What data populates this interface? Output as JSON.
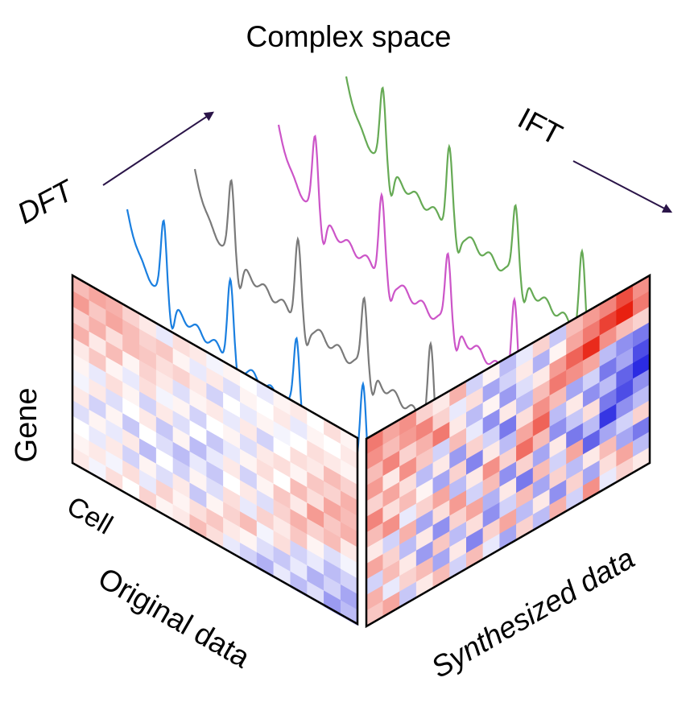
{
  "labels": {
    "title": "Complex space",
    "dft": "DFT",
    "ift": "IFT",
    "gene": "Gene",
    "cell": "Cell",
    "original": "Original data",
    "synthesized": "Synthesized data"
  },
  "colors": {
    "arrow": "#2a1448",
    "wave_series": [
      "#1a7fe0",
      "#7a7a7a",
      "#cc55c8",
      "#66aa55"
    ],
    "heat_negative": "#2020e0",
    "heat_positive": "#e82010",
    "heat_neutral": "#ffffff"
  },
  "heatmaps": {
    "original": {
      "rows": 12,
      "cols": 17,
      "values": [
        [
          0.3,
          0.4,
          0.35,
          0.2,
          0.1,
          -0.1,
          0.15,
          0.1,
          -0.05,
          0.05,
          0.0,
          -0.1,
          0.05,
          0.1,
          0.0,
          0.15,
          0.05
        ],
        [
          0.45,
          0.25,
          0.4,
          0.3,
          0.2,
          0.25,
          0.05,
          -0.1,
          0.1,
          -0.15,
          0.05,
          0.0,
          0.1,
          -0.1,
          0.05,
          0.0,
          0.1
        ],
        [
          0.2,
          0.35,
          0.15,
          0.3,
          0.25,
          0.15,
          0.2,
          0.1,
          -0.2,
          0.0,
          -0.1,
          0.05,
          -0.05,
          0.0,
          0.15,
          0.1,
          0.05
        ],
        [
          0.35,
          0.1,
          0.3,
          0.05,
          0.2,
          0.1,
          -0.15,
          0.05,
          0.1,
          -0.1,
          0.1,
          -0.2,
          0.0,
          0.15,
          0.1,
          0.3,
          0.2
        ],
        [
          0.1,
          0.25,
          0.05,
          -0.1,
          0.15,
          -0.05,
          0.05,
          -0.2,
          0.0,
          0.05,
          -0.15,
          0.1,
          0.15,
          0.05,
          0.25,
          0.2,
          0.35
        ],
        [
          0.05,
          -0.1,
          0.15,
          0.05,
          -0.2,
          0.1,
          -0.15,
          0.0,
          -0.25,
          -0.1,
          0.05,
          0.15,
          0.0,
          0.3,
          0.15,
          0.4,
          0.3
        ],
        [
          -0.05,
          0.1,
          -0.15,
          0.0,
          0.1,
          -0.25,
          0.05,
          -0.3,
          -0.1,
          0.1,
          -0.2,
          0.05,
          0.25,
          0.1,
          0.45,
          0.25,
          0.35
        ],
        [
          0.1,
          -0.2,
          0.05,
          -0.25,
          0.0,
          -0.15,
          -0.3,
          -0.1,
          -0.25,
          0.0,
          0.1,
          -0.15,
          0.2,
          0.35,
          0.2,
          0.3,
          0.1
        ],
        [
          -0.15,
          0.05,
          -0.1,
          0.1,
          -0.3,
          0.0,
          -0.2,
          0.05,
          -0.15,
          0.15,
          -0.1,
          0.2,
          0.1,
          0.25,
          0.05,
          -0.15,
          -0.05
        ],
        [
          0.0,
          -0.1,
          0.1,
          -0.2,
          0.05,
          -0.15,
          0.1,
          -0.25,
          0.05,
          0.2,
          0.3,
          -0.05,
          0.15,
          -0.2,
          -0.1,
          -0.3,
          -0.2
        ],
        [
          0.05,
          0.1,
          -0.05,
          0.15,
          -0.1,
          0.2,
          0.05,
          0.15,
          0.25,
          0.1,
          0.05,
          -0.15,
          -0.25,
          -0.1,
          -0.35,
          -0.2,
          -0.4
        ],
        [
          0.1,
          -0.05,
          0.15,
          0.0,
          0.2,
          0.05,
          0.1,
          0.3,
          0.15,
          -0.1,
          -0.2,
          -0.35,
          -0.1,
          -0.3,
          -0.15,
          -0.45,
          -0.3
        ]
      ]
    },
    "synthesized": {
      "rows": 12,
      "cols": 17,
      "values": [
        [
          0.6,
          0.4,
          0.5,
          0.2,
          0.1,
          0.35,
          -0.2,
          0.05,
          -0.3,
          -0.1,
          0.2,
          -0.25,
          0.3,
          0.45,
          0.55,
          0.8,
          0.5
        ],
        [
          0.5,
          0.3,
          0.45,
          0.55,
          0.2,
          -0.1,
          0.15,
          -0.4,
          -0.2,
          0.1,
          -0.35,
          0.05,
          0.4,
          0.6,
          0.85,
          1.0,
          0.6
        ],
        [
          0.3,
          0.55,
          0.2,
          0.35,
          0.6,
          0.1,
          -0.3,
          0.05,
          -0.45,
          -0.15,
          0.1,
          0.45,
          0.7,
          0.95,
          0.5,
          0.3,
          0.2
        ],
        [
          0.45,
          0.1,
          0.5,
          0.25,
          -0.2,
          0.3,
          -0.1,
          -0.5,
          0.1,
          -0.3,
          0.3,
          0.6,
          0.5,
          0.4,
          -0.3,
          -0.5,
          -0.6
        ],
        [
          0.2,
          0.4,
          0.15,
          -0.3,
          0.1,
          -0.45,
          0.2,
          -0.2,
          -0.6,
          0.15,
          0.5,
          0.3,
          -0.4,
          -0.2,
          -0.6,
          -0.4,
          -0.8
        ],
        [
          0.55,
          0.15,
          0.3,
          0.05,
          -0.4,
          0.2,
          -0.55,
          0.1,
          -0.3,
          0.4,
          0.7,
          -0.3,
          0.1,
          -0.5,
          -0.3,
          -0.7,
          -0.95
        ],
        [
          0.3,
          0.5,
          -0.1,
          0.2,
          0.4,
          -0.3,
          0.1,
          0.5,
          0.2,
          0.65,
          0.3,
          -0.5,
          -0.25,
          0.15,
          -0.6,
          -0.8,
          -0.5
        ],
        [
          0.1,
          -0.2,
          0.35,
          -0.4,
          0.15,
          0.45,
          -0.2,
          0.3,
          -0.5,
          0.2,
          -0.4,
          0.1,
          -0.6,
          -0.3,
          -0.9,
          -0.5,
          -0.3
        ],
        [
          0.4,
          0.2,
          -0.3,
          0.1,
          -0.5,
          0.2,
          0.4,
          -0.35,
          0.1,
          -0.6,
          0.3,
          -0.2,
          0.4,
          -0.7,
          -0.4,
          -0.2,
          0.2
        ],
        [
          -0.2,
          0.3,
          0.1,
          -0.45,
          0.25,
          -0.3,
          0.15,
          -0.5,
          -0.2,
          0.3,
          -0.4,
          0.2,
          -0.3,
          0.1,
          0.3,
          -0.4,
          -0.6
        ],
        [
          0.35,
          -0.1,
          0.2,
          0.3,
          -0.4,
          0.1,
          -0.55,
          0.2,
          0.4,
          -0.3,
          0.1,
          -0.5,
          0.2,
          -0.4,
          0.15,
          0.4,
          -0.3
        ],
        [
          0.25,
          0.4,
          -0.25,
          0.1,
          0.3,
          -0.2,
          0.3,
          -0.1,
          -0.4,
          0.2,
          -0.3,
          0.35,
          -0.2,
          0.5,
          -0.1,
          0.2,
          0.1
        ]
      ]
    }
  },
  "waves": [
    {
      "color_index": 0
    },
    {
      "color_index": 1
    },
    {
      "color_index": 2
    },
    {
      "color_index": 3
    }
  ]
}
